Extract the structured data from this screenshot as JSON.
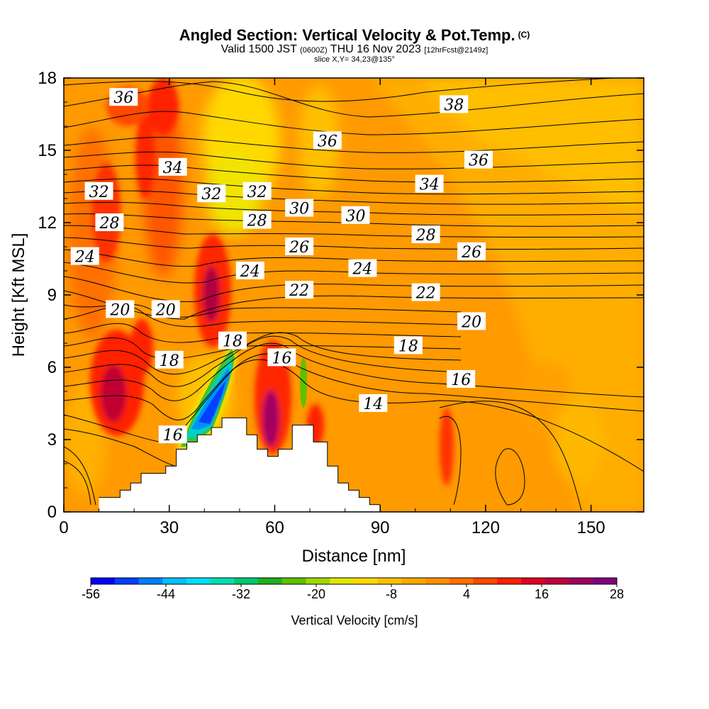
{
  "title": {
    "main": "Angled Section: Vertical Velocity & Pot.Temp.",
    "tag": "(C)",
    "valid_a": "Valid 1500 JST",
    "valid_z": "(0600Z)",
    "valid_b": "THU 16 Nov 2023",
    "fcst": "[12hrFcst@2149z]",
    "slice": "slice X,Y= 34,23@135°"
  },
  "chart_data": {
    "type": "heatmap",
    "xlabel": "Distance [nm]",
    "ylabel": "Height [Kft MSL]",
    "xlim": [
      0,
      165
    ],
    "ylim": [
      0,
      18
    ],
    "x_ticks": [
      0,
      30,
      60,
      90,
      120,
      150
    ],
    "y_ticks": [
      0,
      3,
      6,
      9,
      12,
      15,
      18
    ],
    "x_tick_labels": [
      "0",
      "30",
      "60",
      "90",
      "120",
      "150"
    ],
    "y_tick_labels": [
      "0",
      "3",
      "6",
      "9",
      "12",
      "15",
      "18"
    ],
    "colorbar": {
      "label": "Vertical Velocity [cm/s]",
      "tick_labels": [
        "-56",
        "-44",
        "-32",
        "-20",
        "-8",
        "4",
        "16",
        "28"
      ],
      "colors": [
        "#0000ff",
        "#0040ff",
        "#0080ff",
        "#00bfff",
        "#00dfff",
        "#00e0b0",
        "#00c870",
        "#20b020",
        "#60c000",
        "#a0d800",
        "#e0e800",
        "#ffd800",
        "#ffc000",
        "#ffa800",
        "#ff9000",
        "#ff7000",
        "#ff4800",
        "#ff2000",
        "#e00020",
        "#c00040",
        "#a00060",
        "#800080"
      ]
    },
    "background_color": "#ff9a00",
    "terrain": [
      [
        10,
        0.6
      ],
      [
        16,
        0.6
      ],
      [
        16,
        0.9
      ],
      [
        19,
        0.9
      ],
      [
        19,
        1.2
      ],
      [
        22,
        1.2
      ],
      [
        22,
        1.6
      ],
      [
        29,
        1.6
      ],
      [
        29,
        1.9
      ],
      [
        32,
        1.9
      ],
      [
        32,
        2.6
      ],
      [
        35,
        2.6
      ],
      [
        35,
        2.9
      ],
      [
        38,
        2.9
      ],
      [
        38,
        3.2
      ],
      [
        42,
        3.2
      ],
      [
        42,
        3.5
      ],
      [
        45,
        3.5
      ],
      [
        45,
        3.9
      ],
      [
        52,
        3.9
      ],
      [
        52,
        3.2
      ],
      [
        55,
        3.2
      ],
      [
        55,
        2.6
      ],
      [
        58,
        2.6
      ],
      [
        58,
        2.3
      ],
      [
        61,
        2.3
      ],
      [
        61,
        2.6
      ],
      [
        65,
        2.6
      ],
      [
        65,
        3.6
      ],
      [
        71,
        3.6
      ],
      [
        71,
        2.9
      ],
      [
        75,
        2.9
      ],
      [
        75,
        1.9
      ],
      [
        78,
        1.9
      ],
      [
        78,
        1.2
      ],
      [
        81,
        1.2
      ],
      [
        81,
        0.9
      ],
      [
        84,
        0.9
      ],
      [
        84,
        0.6
      ],
      [
        87,
        0.6
      ],
      [
        87,
        0.3
      ],
      [
        90,
        0.3
      ]
    ],
    "theta_labels": [
      {
        "text": "36",
        "x": 17,
        "y": 17.2
      },
      {
        "text": "38",
        "x": 111,
        "y": 16.9
      },
      {
        "text": "36",
        "x": 75,
        "y": 15.4
      },
      {
        "text": "36",
        "x": 118,
        "y": 14.6
      },
      {
        "text": "34",
        "x": 31,
        "y": 14.3
      },
      {
        "text": "34",
        "x": 104,
        "y": 13.6
      },
      {
        "text": "32",
        "x": 10,
        "y": 13.3
      },
      {
        "text": "32",
        "x": 42,
        "y": 13.2
      },
      {
        "text": "32",
        "x": 55,
        "y": 13.3
      },
      {
        "text": "30",
        "x": 67,
        "y": 12.6
      },
      {
        "text": "30",
        "x": 83,
        "y": 12.3
      },
      {
        "text": "28",
        "x": 13,
        "y": 12.0
      },
      {
        "text": "28",
        "x": 55,
        "y": 12.1
      },
      {
        "text": "28",
        "x": 103,
        "y": 11.5
      },
      {
        "text": "26",
        "x": 67,
        "y": 11.0
      },
      {
        "text": "26",
        "x": 116,
        "y": 10.8
      },
      {
        "text": "24",
        "x": 6,
        "y": 10.6
      },
      {
        "text": "24",
        "x": 53,
        "y": 10.0
      },
      {
        "text": "24",
        "x": 85,
        "y": 10.1
      },
      {
        "text": "22",
        "x": 67,
        "y": 9.2
      },
      {
        "text": "22",
        "x": 103,
        "y": 9.1
      },
      {
        "text": "20",
        "x": 16,
        "y": 8.4
      },
      {
        "text": "20",
        "x": 29,
        "y": 8.4
      },
      {
        "text": "20",
        "x": 116,
        "y": 7.9
      },
      {
        "text": "18",
        "x": 48,
        "y": 7.1
      },
      {
        "text": "18",
        "x": 98,
        "y": 6.9
      },
      {
        "text": "18",
        "x": 30,
        "y": 6.3
      },
      {
        "text": "16",
        "x": 62,
        "y": 6.4
      },
      {
        "text": "16",
        "x": 113,
        "y": 5.5
      },
      {
        "text": "16",
        "x": 31,
        "y": 3.2
      },
      {
        "text": "14",
        "x": 88,
        "y": 4.5
      }
    ]
  }
}
